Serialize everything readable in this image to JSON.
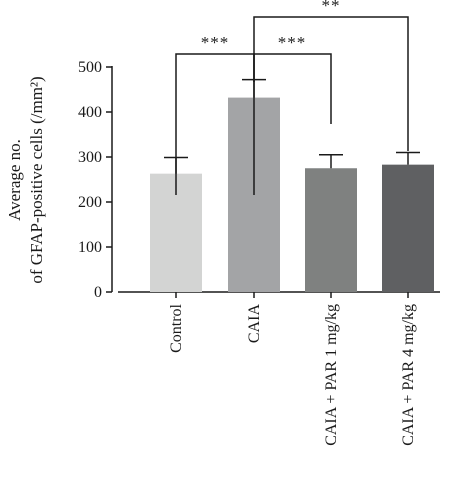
{
  "chart_data": {
    "type": "bar",
    "categories": [
      "Control",
      "CAIA",
      "CAIA + PAR 1 mg/kg",
      "CAIA + PAR 4 mg/kg"
    ],
    "values": [
      263,
      432,
      275,
      283
    ],
    "errors": [
      36,
      40,
      30,
      27
    ],
    "colors": [
      "#d3d4d3",
      "#a3a4a6",
      "#7f8180",
      "#5f6062"
    ],
    "ylabel_lines": [
      "Average no.",
      "of GFAP-positive cells (/mm²)"
    ],
    "ylim": [
      0,
      500
    ],
    "yticks": [
      0,
      100,
      200,
      300,
      400,
      500
    ],
    "significance": [
      {
        "from": 0,
        "to": 1,
        "label": "***"
      },
      {
        "from": 1,
        "to": 2,
        "label": "***"
      },
      {
        "from": 1,
        "to": 3,
        "label": "**"
      }
    ],
    "grid": false,
    "legend": "none"
  }
}
